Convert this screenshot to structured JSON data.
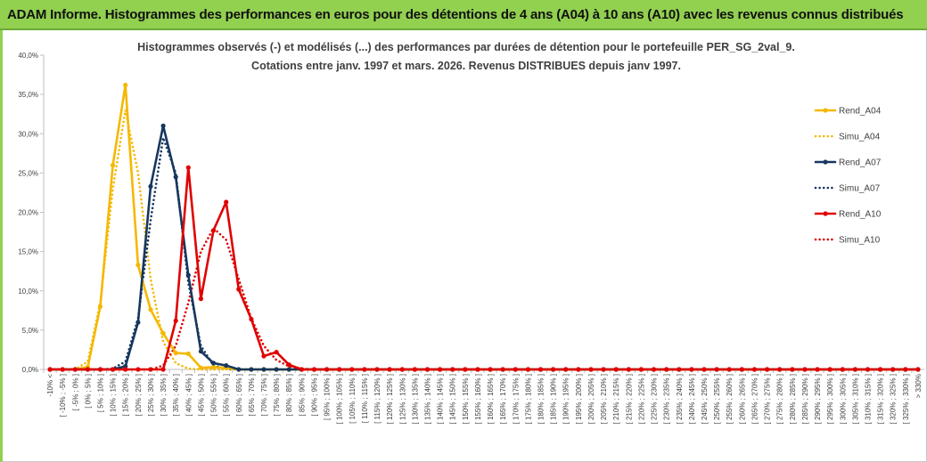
{
  "banner_title": "ADAM Informe. Histogrammes des performances en euros pour des détentions de 4 ans (A04) à 10 ans (A10) avec les revenus connus distribués",
  "chart_data": {
    "type": "line",
    "title": "Histogrammes observés (-) et modélisés (...) des performances par durées de détention pour le portefeuille PER_SG_2val_9.",
    "subtitle": "Cotations entre janv. 1997 et mars. 2026. Revenus DISTRIBUES depuis janv 1997.",
    "xlabel": "",
    "ylabel": "",
    "ylim": [
      0,
      40
    ],
    "y_ticks": [
      "0,0%",
      "5,0%",
      "10,0%",
      "15,0%",
      "20,0%",
      "25,0%",
      "30,0%",
      "35,0%",
      "40,0%"
    ],
    "grid": false,
    "legend_position": "right",
    "categories": [
      "-10% <",
      "[ -10% ; -5% ]",
      "[ -5% ; 0% ]",
      "[ 0% ; 5% ]",
      "[ 5% ; 10% ]",
      "[ 10% ; 15% ]",
      "[ 15% ; 20% ]",
      "[ 20% ; 25% ]",
      "[ 25% ; 30% ]",
      "[ 30% ; 35% ]",
      "[ 35% ; 40% ]",
      "[ 40% ; 45% ]",
      "[ 45% ; 50% ]",
      "[ 50% ; 55% ]",
      "[ 55% ; 60% ]",
      "[ 60% ; 65% ]",
      "[ 65% ; 70% ]",
      "[ 70% ; 75% ]",
      "[ 75% ; 80% ]",
      "[ 80% ; 85% ]",
      "[ 85% ; 90% ]",
      "[ 90% ; 95% ]",
      "[ 95% ; 100% ]",
      "[ 100% ; 105% ]",
      "[ 105% ; 110% ]",
      "[ 110% ; 115% ]",
      "[ 115% ; 120% ]",
      "[ 120% ; 125% ]",
      "[ 125% ; 130% ]",
      "[ 130% ; 135% ]",
      "[ 135% ; 140% ]",
      "[ 140% ; 145% ]",
      "[ 145% ; 150% ]",
      "[ 150% ; 155% ]",
      "[ 155% ; 160% ]",
      "[ 160% ; 165% ]",
      "[ 165% ; 170% ]",
      "[ 170% ; 175% ]",
      "[ 175% ; 180% ]",
      "[ 180% ; 185% ]",
      "[ 185% ; 190% ]",
      "[ 190% ; 195% ]",
      "[ 195% ; 200% ]",
      "[ 200% ; 205% ]",
      "[ 205% ; 210% ]",
      "[ 210% ; 215% ]",
      "[ 215% ; 220% ]",
      "[ 220% ; 225% ]",
      "[ 225% ; 230% ]",
      "[ 230% ; 235% ]",
      "[ 235% ; 240% ]",
      "[ 240% ; 245% ]",
      "[ 245% ; 250% ]",
      "[ 250% ; 255% ]",
      "[ 255% ; 260% ]",
      "[ 260% ; 265% ]",
      "[ 265% ; 270% ]",
      "[ 270% ; 275% ]",
      "[ 275% ; 280% ]",
      "[ 280% ; 285% ]",
      "[ 285% ; 290% ]",
      "[ 290% ; 295% ]",
      "[ 295% ; 300% ]",
      "[ 300% ; 305% ]",
      "[ 305% ; 310% ]",
      "[ 310% ; 315% ]",
      "[ 315% ; 320% ]",
      "[ 320% ; 325% ]",
      "[ 325% ; 330% ]",
      "> 330%"
    ],
    "series": [
      {
        "name": "Rend_A04",
        "color": "#f5b800",
        "style": "solid",
        "markers": true,
        "values": [
          0,
          0,
          0,
          0.3,
          8.0,
          26.0,
          36.2,
          13.3,
          7.6,
          4.6,
          2.1,
          2.0,
          0.2,
          0.3,
          0.2,
          0,
          0,
          0,
          0,
          0,
          0,
          0,
          0,
          0,
          0,
          0,
          0,
          0,
          0,
          0,
          0,
          0,
          0,
          0,
          0,
          0,
          0,
          0,
          0,
          0,
          0,
          0,
          0,
          0,
          0,
          0,
          0,
          0,
          0,
          0,
          0,
          0,
          0,
          0,
          0,
          0,
          0,
          0,
          0,
          0,
          0,
          0,
          0,
          0,
          0,
          0,
          0,
          0,
          0,
          0
        ]
      },
      {
        "name": "Simu_A04",
        "color": "#f5b800",
        "style": "dotted",
        "markers": false,
        "values": [
          0,
          0,
          0,
          1.0,
          8.5,
          23.0,
          33.0,
          25.0,
          11.5,
          3.5,
          0.8,
          0.1,
          0,
          0,
          0,
          0,
          0,
          0,
          0,
          0,
          0,
          0,
          0,
          0,
          0,
          0,
          0,
          0,
          0,
          0,
          0,
          0,
          0,
          0,
          0,
          0,
          0,
          0,
          0,
          0,
          0,
          0,
          0,
          0,
          0,
          0,
          0,
          0,
          0,
          0,
          0,
          0,
          0,
          0,
          0,
          0,
          0,
          0,
          0,
          0,
          0,
          0,
          0,
          0,
          0,
          0,
          0,
          0,
          0,
          0
        ]
      },
      {
        "name": "Rend_A07",
        "color": "#17375e",
        "style": "solid",
        "markers": true,
        "values": [
          0,
          0,
          0,
          0,
          0,
          0,
          0.4,
          6.0,
          23.3,
          31.0,
          24.5,
          12.0,
          2.3,
          0.8,
          0.5,
          0,
          0,
          0,
          0,
          0,
          0,
          0,
          0,
          0,
          0,
          0,
          0,
          0,
          0,
          0,
          0,
          0,
          0,
          0,
          0,
          0,
          0,
          0,
          0,
          0,
          0,
          0,
          0,
          0,
          0,
          0,
          0,
          0,
          0,
          0,
          0,
          0,
          0,
          0,
          0,
          0,
          0,
          0,
          0,
          0,
          0,
          0,
          0,
          0,
          0,
          0,
          0,
          0,
          0,
          0
        ]
      },
      {
        "name": "Simu_A07",
        "color": "#17375e",
        "style": "dotted",
        "markers": false,
        "values": [
          0,
          0,
          0,
          0,
          0,
          0.1,
          1.0,
          6.5,
          19.0,
          29.5,
          25.0,
          11.0,
          3.0,
          0.5,
          0.1,
          0,
          0,
          0,
          0,
          0,
          0,
          0,
          0,
          0,
          0,
          0,
          0,
          0,
          0,
          0,
          0,
          0,
          0,
          0,
          0,
          0,
          0,
          0,
          0,
          0,
          0,
          0,
          0,
          0,
          0,
          0,
          0,
          0,
          0,
          0,
          0,
          0,
          0,
          0,
          0,
          0,
          0,
          0,
          0,
          0,
          0,
          0,
          0,
          0,
          0,
          0,
          0,
          0,
          0,
          0
        ]
      },
      {
        "name": "Rend_A10",
        "color": "#e00000",
        "style": "solid",
        "markers": true,
        "values": [
          0,
          0,
          0,
          0,
          0,
          0,
          0,
          0,
          0,
          0,
          6.2,
          25.7,
          9.0,
          17.7,
          21.3,
          10.2,
          6.4,
          1.7,
          2.2,
          0.6,
          0,
          0,
          0,
          0,
          0,
          0,
          0,
          0,
          0,
          0,
          0,
          0,
          0,
          0,
          0,
          0,
          0,
          0,
          0,
          0,
          0,
          0,
          0,
          0,
          0,
          0,
          0,
          0,
          0,
          0,
          0,
          0,
          0,
          0,
          0,
          0,
          0,
          0,
          0,
          0,
          0,
          0,
          0,
          0,
          0,
          0,
          0,
          0,
          0,
          0
        ]
      },
      {
        "name": "Simu_A10",
        "color": "#e00000",
        "style": "dotted",
        "markers": false,
        "values": [
          0,
          0,
          0,
          0,
          0,
          0,
          0,
          0,
          0,
          0.5,
          3.0,
          8.5,
          15.0,
          18.0,
          16.5,
          11.5,
          6.5,
          3.0,
          1.2,
          0.4,
          0.1,
          0,
          0,
          0,
          0,
          0,
          0,
          0,
          0,
          0,
          0,
          0,
          0,
          0,
          0,
          0,
          0,
          0,
          0,
          0,
          0,
          0,
          0,
          0,
          0,
          0,
          0,
          0,
          0,
          0,
          0,
          0,
          0,
          0,
          0,
          0,
          0,
          0,
          0,
          0,
          0,
          0,
          0,
          0,
          0,
          0,
          0,
          0,
          0,
          0
        ]
      }
    ]
  }
}
